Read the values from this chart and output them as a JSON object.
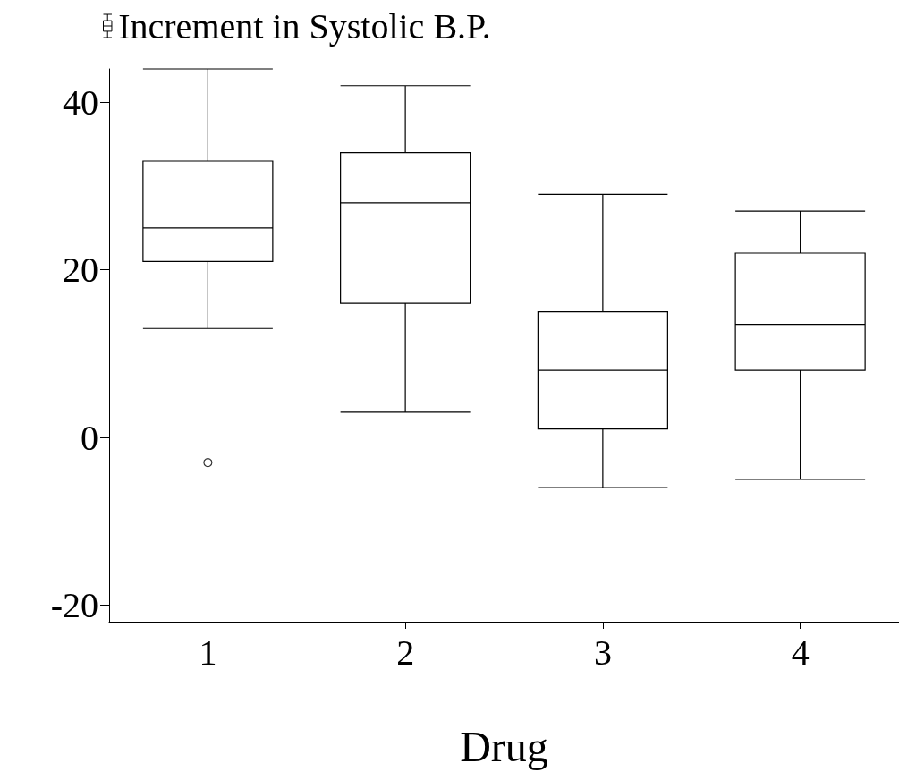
{
  "chart_data": {
    "type": "box",
    "xlabel": "Drug",
    "categories": [
      "1",
      "2",
      "3",
      "4"
    ],
    "legend": "top left",
    "grid": false,
    "series": [
      {
        "name": "Increment in Systolic B.P.",
        "color": "#000000",
        "boxes": [
          {
            "low": 13,
            "q1": 21,
            "median": 25,
            "q3": 33,
            "high": 44,
            "outliers": [
              -3
            ]
          },
          {
            "low": 3,
            "q1": 16,
            "median": 28,
            "q3": 34,
            "high": 42
          },
          {
            "low": -6,
            "q1": 1,
            "median": 8,
            "q3": 15,
            "high": 29
          },
          {
            "low": -5,
            "q1": 8,
            "median": 13.5,
            "q3": 22,
            "high": 27
          }
        ]
      }
    ],
    "ylim": [
      -22,
      44
    ],
    "yticks": [
      -20,
      0,
      20,
      40
    ]
  }
}
